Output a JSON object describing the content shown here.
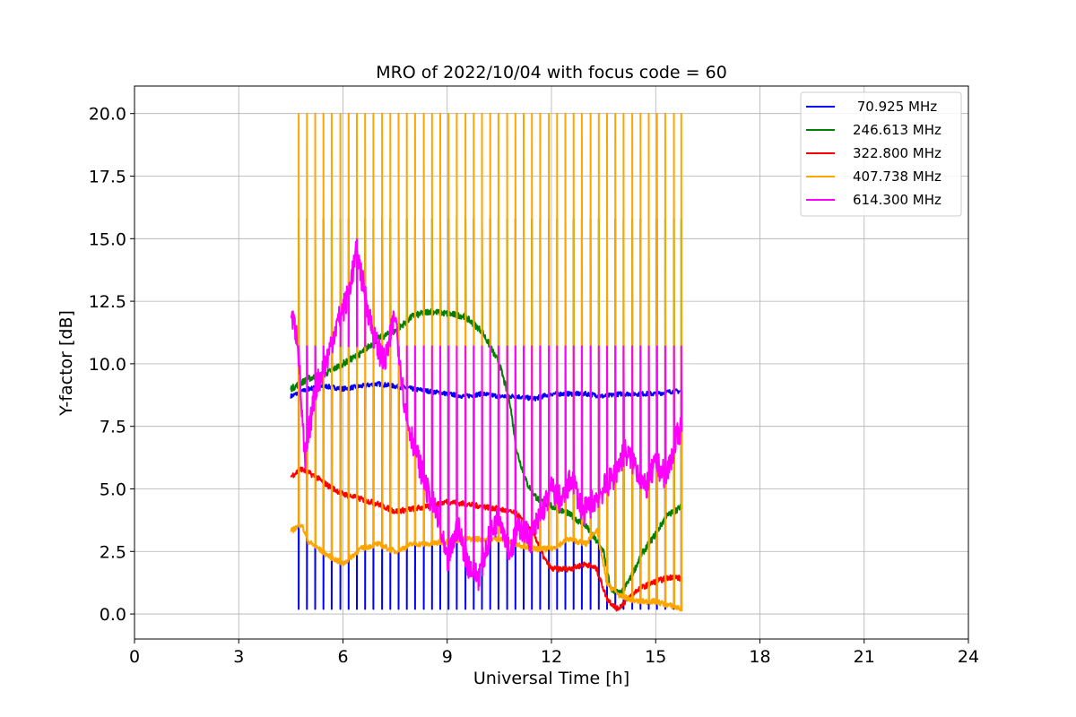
{
  "chart_data": {
    "type": "line",
    "title": "MRO of 2022/10/04 with focus code = 60",
    "xlabel": "Universal Time [h]",
    "ylabel": "Y-factor [dB]",
    "xlim": [
      0,
      24
    ],
    "ylim": [
      -1.0,
      21.1
    ],
    "xticks": [
      0,
      3,
      6,
      9,
      12,
      15,
      18,
      21,
      24
    ],
    "xtick_labels": [
      "0",
      "3",
      "6",
      "9",
      "12",
      "15",
      "18",
      "21",
      "24"
    ],
    "yticks": [
      0.0,
      2.5,
      5.0,
      7.5,
      10.0,
      12.5,
      15.0,
      17.5,
      20.0
    ],
    "ytick_labels": [
      "0.0",
      "2.5",
      "5.0",
      "7.5",
      "10.0",
      "12.5",
      "15.0",
      "17.5",
      "20.0"
    ],
    "grid": true,
    "legend_position": "top-right",
    "series": [
      {
        "name": " 70.925 MHz",
        "color": "#0000ff",
        "x": [
          4.5,
          5.0,
          5.5,
          6.0,
          6.5,
          7.0,
          7.5,
          8.0,
          8.5,
          9.0,
          9.5,
          10.0,
          10.5,
          11.0,
          11.5,
          12.0,
          12.5,
          13.0,
          13.5,
          14.0,
          14.5,
          15.0,
          15.5,
          15.75
        ],
        "values": [
          8.7,
          9.0,
          9.1,
          9.0,
          9.1,
          9.2,
          9.1,
          9.0,
          8.9,
          8.8,
          8.7,
          8.8,
          8.7,
          8.7,
          8.6,
          8.8,
          8.8,
          8.8,
          8.7,
          8.8,
          8.8,
          8.8,
          8.9,
          8.9
        ],
        "spike_low": 0.2
      },
      {
        "name": "246.613 MHz",
        "color": "#008000",
        "x": [
          4.5,
          5.0,
          5.5,
          6.0,
          6.5,
          7.0,
          7.5,
          8.0,
          8.5,
          9.0,
          9.5,
          10.0,
          10.5,
          10.8,
          11.0,
          11.3,
          11.6,
          12.0,
          12.5,
          13.0,
          13.5,
          13.7,
          14.0,
          14.3,
          14.6,
          15.0,
          15.3,
          15.75
        ],
        "values": [
          9.0,
          9.4,
          9.6,
          10.0,
          10.4,
          11.0,
          11.3,
          11.9,
          12.1,
          12.0,
          11.9,
          11.3,
          10.0,
          8.5,
          6.5,
          5.2,
          4.6,
          4.3,
          4.0,
          3.5,
          2.5,
          1.0,
          0.8,
          1.5,
          2.4,
          3.2,
          3.9,
          4.3
        ],
        "spike_high": 15.8
      },
      {
        "name": "322.800 MHz",
        "color": "#ff0000",
        "x": [
          4.5,
          4.8,
          5.2,
          5.6,
          6.0,
          6.5,
          7.0,
          7.5,
          8.0,
          8.5,
          9.0,
          9.5,
          10.0,
          10.5,
          11.0,
          11.5,
          11.8,
          12.0,
          12.5,
          13.0,
          13.3,
          13.6,
          13.9,
          14.2,
          14.5,
          15.0,
          15.5,
          15.75
        ],
        "values": [
          5.5,
          5.8,
          5.5,
          5.1,
          4.8,
          4.6,
          4.4,
          4.1,
          4.2,
          4.3,
          4.5,
          4.4,
          4.3,
          4.2,
          4.0,
          3.2,
          2.2,
          1.8,
          1.8,
          2.0,
          1.8,
          0.6,
          0.2,
          0.6,
          1.0,
          1.3,
          1.5,
          1.4
        ]
      },
      {
        "name": "407.738 MHz",
        "color": "#ffa500",
        "x": [
          4.5,
          4.8,
          5.0,
          5.5,
          6.0,
          6.5,
          7.0,
          7.5,
          8.0,
          8.5,
          9.0,
          9.5,
          10.0,
          10.5,
          11.0,
          11.5,
          12.0,
          12.5,
          13.0,
          13.3,
          13.6,
          14.0,
          14.5,
          15.0,
          15.5,
          15.75
        ],
        "values": [
          3.3,
          3.6,
          2.9,
          2.4,
          2.0,
          2.6,
          2.8,
          2.5,
          2.8,
          2.8,
          2.9,
          3.0,
          3.0,
          3.0,
          2.8,
          2.6,
          2.6,
          3.0,
          2.8,
          3.4,
          1.2,
          0.7,
          0.5,
          0.5,
          0.3,
          0.2
        ],
        "spike_high": 20.0
      },
      {
        "name": "614.300 MHz",
        "color": "#ff00ff",
        "x": [
          4.5,
          4.7,
          4.9,
          5.2,
          5.5,
          5.8,
          6.1,
          6.4,
          6.6,
          6.9,
          7.2,
          7.5,
          7.8,
          8.1,
          8.4,
          8.7,
          9.0,
          9.3,
          9.6,
          9.9,
          10.2,
          10.5,
          10.8,
          11.1,
          11.4,
          11.7,
          12.0,
          12.3,
          12.6,
          12.9,
          13.2,
          13.5,
          13.8,
          14.1,
          14.4,
          14.7,
          15.0,
          15.3,
          15.6,
          15.75
        ],
        "values": [
          12.0,
          11.0,
          6.0,
          9.0,
          10.0,
          11.5,
          12.5,
          14.5,
          13.0,
          11.0,
          10.0,
          12.0,
          8.0,
          6.5,
          5.0,
          4.0,
          2.0,
          3.5,
          2.0,
          1.5,
          3.0,
          4.0,
          2.5,
          3.5,
          3.0,
          4.0,
          5.0,
          4.5,
          5.5,
          4.0,
          4.5,
          5.0,
          5.5,
          6.5,
          6.0,
          5.0,
          6.0,
          5.5,
          7.0,
          7.5
        ],
        "spike_high": 10.7
      }
    ],
    "spike_x": [
      4.72,
      4.96,
      5.2,
      5.44,
      5.68,
      5.92,
      6.16,
      6.4,
      6.64,
      6.88,
      7.12,
      7.36,
      7.6,
      7.84,
      8.08,
      8.32,
      8.56,
      8.8,
      9.04,
      9.28,
      9.52,
      9.76,
      10.0,
      10.24,
      10.48,
      10.72,
      10.96,
      11.2,
      11.44,
      11.68,
      11.92,
      12.16,
      12.4,
      12.64,
      12.88,
      13.12,
      13.36,
      13.6,
      13.84,
      14.08,
      14.32,
      14.56,
      14.8,
      15.04,
      15.28,
      15.52,
      15.74
    ]
  }
}
